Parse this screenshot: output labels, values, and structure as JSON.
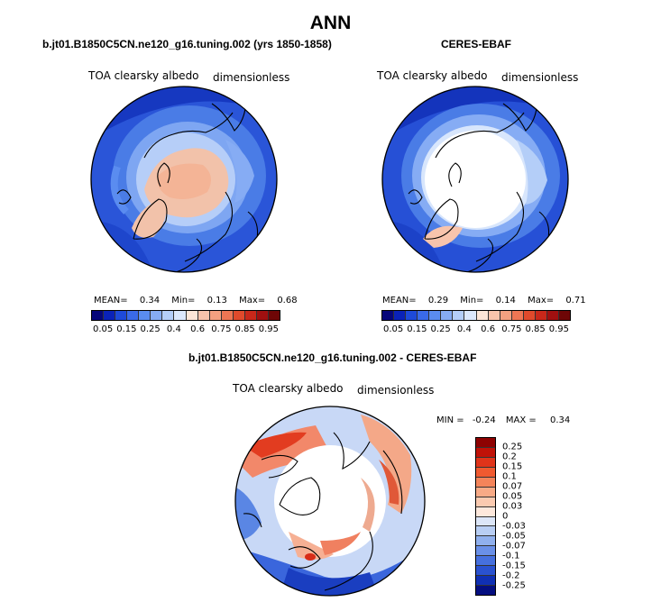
{
  "title": "ANN",
  "panels": {
    "model": {
      "title": "b.jt01.B1850C5CN.ne120_g16.tuning.002 (yrs 1850-1858)",
      "variable": "TOA clearsky albedo",
      "units": "dimensionless",
      "stats": {
        "mean_label": "MEAN=",
        "mean": "0.34",
        "min_label": "Min=",
        "min": "0.13",
        "max_label": "Max=",
        "max": "0.68"
      }
    },
    "obs": {
      "title": "CERES-EBAF",
      "variable": "TOA clearsky albedo",
      "units": "dimensionless",
      "stats": {
        "mean_label": "MEAN=",
        "mean": "0.29",
        "min_label": "Min=",
        "min": "0.14",
        "max_label": "Max=",
        "max": "0.71"
      }
    },
    "diff": {
      "title": "b.jt01.B1850C5CN.ne120_g16.tuning.002 - CERES-EBAF",
      "variable": "TOA clearsky albedo",
      "units": "dimensionless",
      "stats": {
        "min_label": "MIN =",
        "min": "-0.24",
        "max_label": "MAX =",
        "max": "0.34"
      }
    }
  },
  "colorbar_abs": {
    "colors": [
      "#06067a",
      "#0a22b8",
      "#1e4ad8",
      "#3a6ae8",
      "#5a8cf0",
      "#86acf4",
      "#b4cef8",
      "#dce8fc",
      "#fde6d8",
      "#f8c4ac",
      "#f4a080",
      "#ee7654",
      "#e04a2c",
      "#c8281a",
      "#a01010",
      "#6e0606"
    ],
    "tick_labels": [
      "0.05",
      "0.15",
      "0.25",
      "0.4",
      "0.6",
      "0.75",
      "0.85",
      "0.95"
    ]
  },
  "colorbar_diff": {
    "colors": [
      "#8e0202",
      "#c01208",
      "#e0341a",
      "#f05a30",
      "#f4845a",
      "#f8aa86",
      "#fbcab0",
      "#fde8dc",
      "#dce6f8",
      "#b8cef4",
      "#90b0ee",
      "#6a90e8",
      "#4670de",
      "#2a52d0",
      "#1030b4",
      "#040e80"
    ],
    "tick_labels": [
      "0.25",
      "0.2",
      "0.15",
      "0.1",
      "0.07",
      "0.05",
      "0.03",
      "0",
      "-0.03",
      "-0.05",
      "-0.07",
      "-0.1",
      "-0.15",
      "-0.2",
      "-0.25"
    ]
  }
}
